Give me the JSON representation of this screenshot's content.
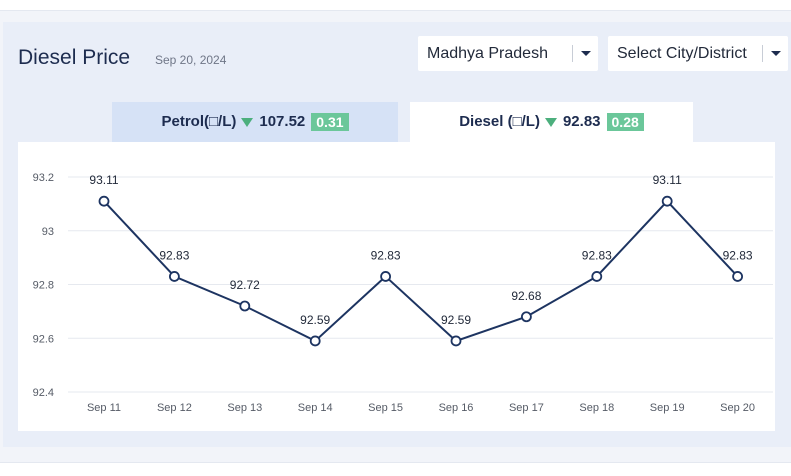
{
  "header": {
    "title": "Diesel Price",
    "date": "Sep 20, 2024"
  },
  "filters": {
    "state": "Madhya Pradesh",
    "city": "Select City/District"
  },
  "tabs": {
    "petrol": {
      "label": "Petrol(□/L)",
      "price": "107.52",
      "change": "0.31"
    },
    "diesel": {
      "label": "Diesel (□/L)",
      "price": "92.83",
      "change": "0.28"
    }
  },
  "colors": {
    "line": "#1d3461",
    "down_arrow": "#4caf7d",
    "badge": "#6bc79a",
    "active_tab": "#ffffff",
    "inactive_tab": "#d6e2f6"
  },
  "chart_data": {
    "type": "line",
    "title": "",
    "xlabel": "",
    "ylabel": "",
    "categories": [
      "Sep 11",
      "Sep 12",
      "Sep 13",
      "Sep 14",
      "Sep 15",
      "Sep 16",
      "Sep 17",
      "Sep 18",
      "Sep 19",
      "Sep 20"
    ],
    "series": [
      {
        "name": "Diesel",
        "values": [
          93.11,
          92.83,
          92.72,
          92.59,
          92.83,
          92.59,
          92.68,
          92.83,
          93.11,
          92.83
        ]
      }
    ],
    "data_labels": [
      "93.11",
      "92.83",
      "92.72",
      "92.59",
      "92.83",
      "92.59",
      "92.68",
      "92.83",
      "93.11",
      "92.83"
    ],
    "ylim": [
      92.4,
      93.2
    ],
    "yticks": [
      92.4,
      92.6,
      92.8,
      93,
      93.2
    ],
    "ytick_labels": [
      "92.4",
      "92.6",
      "92.8",
      "93",
      "93.2"
    ],
    "grid": true,
    "legend": "none"
  }
}
